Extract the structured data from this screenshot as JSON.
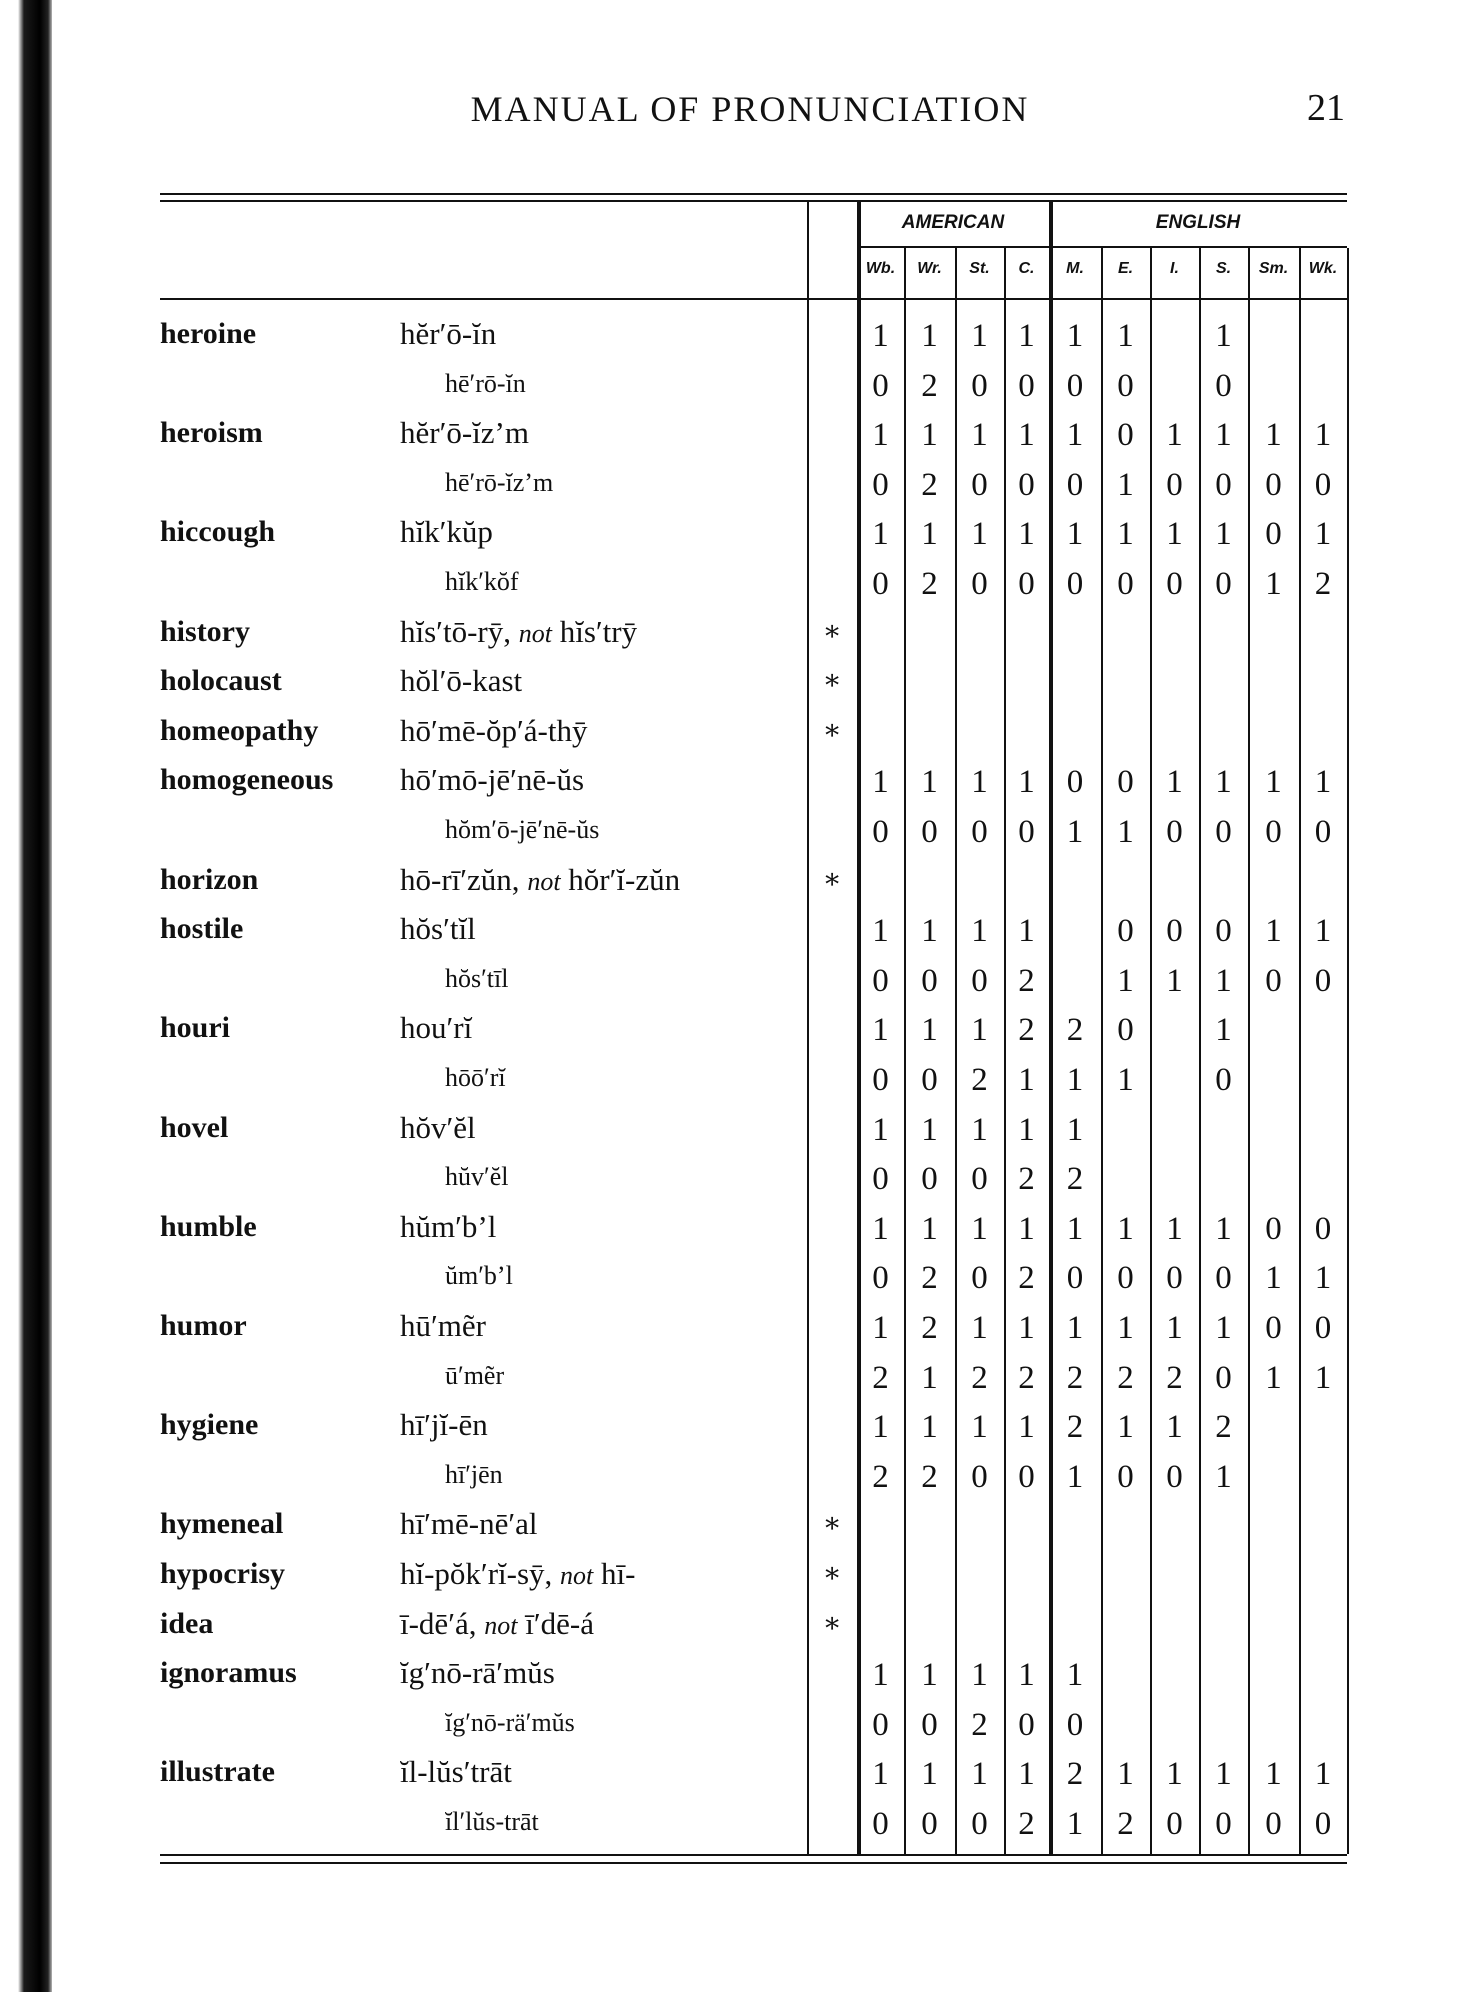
{
  "header": {
    "title": "MANUAL OF PRONUNCIATION",
    "page_number": "21"
  },
  "table": {
    "groups": [
      "AMERICAN",
      "ENGLISH"
    ],
    "columns": [
      "Wb.",
      "Wr.",
      "St.",
      "C.",
      "M.",
      "E.",
      "I.",
      "S.",
      "Sm.",
      "Wk."
    ],
    "star_symbol": "∗",
    "rows": [
      {
        "word": "heroine",
        "pron": "hĕr′ō-ĭn",
        "values": [
          "1",
          "1",
          "1",
          "1",
          "1",
          "1",
          "",
          "1",
          "",
          ""
        ]
      },
      {
        "word": "",
        "pron": "hē′rō-ĭn",
        "values": [
          "0",
          "2",
          "0",
          "0",
          "0",
          "0",
          "",
          "0",
          "",
          ""
        ]
      },
      {
        "word": "heroism",
        "pron": "hĕr′ō-ĭz’m",
        "values": [
          "1",
          "1",
          "1",
          "1",
          "1",
          "0",
          "1",
          "1",
          "1",
          "1"
        ]
      },
      {
        "word": "",
        "pron": "hē′rō-ĭz’m",
        "values": [
          "0",
          "2",
          "0",
          "0",
          "0",
          "1",
          "0",
          "0",
          "0",
          "0"
        ]
      },
      {
        "word": "hiccough",
        "pron": "hĭk′kŭp",
        "values": [
          "1",
          "1",
          "1",
          "1",
          "1",
          "1",
          "1",
          "1",
          "0",
          "1"
        ]
      },
      {
        "word": "",
        "pron": "hĭk′kŏf",
        "values": [
          "0",
          "2",
          "0",
          "0",
          "0",
          "0",
          "0",
          "0",
          "1",
          "2"
        ]
      },
      {
        "word": "history",
        "pron": "hĭs′tō-rȳ,",
        "not": "not",
        "alt": "hĭs′trȳ",
        "star": true,
        "values": []
      },
      {
        "word": "holocaust",
        "pron": "hŏl′ō-kast",
        "star": true,
        "values": []
      },
      {
        "word": "homeopathy",
        "pron": "hō′mē-ŏp′á-thȳ",
        "star": true,
        "values": []
      },
      {
        "word": "homogeneous",
        "pron": "hō′mō-jē′nē-ŭs",
        "values": [
          "1",
          "1",
          "1",
          "1",
          "0",
          "0",
          "1",
          "1",
          "1",
          "1"
        ]
      },
      {
        "word": "",
        "pron": "hŏm′ō-jē′nē-ŭs",
        "values": [
          "0",
          "0",
          "0",
          "0",
          "1",
          "1",
          "0",
          "0",
          "0",
          "0"
        ]
      },
      {
        "word": "horizon",
        "pron": "hō-rī′zŭn,",
        "not": "not",
        "alt": "hŏr′ĭ-zŭn",
        "star": true,
        "values": []
      },
      {
        "word": "hostile",
        "pron": "hŏs′tĭl",
        "values": [
          "1",
          "1",
          "1",
          "1",
          "",
          "0",
          "0",
          "0",
          "1",
          "1"
        ]
      },
      {
        "word": "",
        "pron": "hŏs′tīl",
        "values": [
          "0",
          "0",
          "0",
          "2",
          "",
          "1",
          "1",
          "1",
          "0",
          "0"
        ]
      },
      {
        "word": "houri",
        "pron": "hou′rĭ",
        "values": [
          "1",
          "1",
          "1",
          "2",
          "2",
          "0",
          "",
          "1",
          "",
          ""
        ]
      },
      {
        "word": "",
        "pron": "hōō′rĭ",
        "values": [
          "0",
          "0",
          "2",
          "1",
          "1",
          "1",
          "",
          "0",
          "",
          ""
        ]
      },
      {
        "word": "hovel",
        "pron": "hŏv′ĕl",
        "values": [
          "1",
          "1",
          "1",
          "1",
          "1",
          "",
          "",
          "",
          "",
          ""
        ]
      },
      {
        "word": "",
        "pron": "hŭv′ĕl",
        "values": [
          "0",
          "0",
          "0",
          "2",
          "2",
          "",
          "",
          "",
          "",
          ""
        ]
      },
      {
        "word": "humble",
        "pron": "hŭm′b’l",
        "values": [
          "1",
          "1",
          "1",
          "1",
          "1",
          "1",
          "1",
          "1",
          "0",
          "0"
        ]
      },
      {
        "word": "",
        "pron": "ŭm′b’l",
        "values": [
          "0",
          "2",
          "0",
          "2",
          "0",
          "0",
          "0",
          "0",
          "1",
          "1"
        ]
      },
      {
        "word": "humor",
        "pron": "hū′mẽr",
        "values": [
          "1",
          "2",
          "1",
          "1",
          "1",
          "1",
          "1",
          "1",
          "0",
          "0"
        ]
      },
      {
        "word": "",
        "pron": "ū′mẽr",
        "values": [
          "2",
          "1",
          "2",
          "2",
          "2",
          "2",
          "2",
          "0",
          "1",
          "1"
        ]
      },
      {
        "word": "hygiene",
        "pron": "hī′jĭ-ēn",
        "values": [
          "1",
          "1",
          "1",
          "1",
          "2",
          "1",
          "1",
          "2",
          "",
          ""
        ]
      },
      {
        "word": "",
        "pron": "hī′jēn",
        "values": [
          "2",
          "2",
          "0",
          "0",
          "1",
          "0",
          "0",
          "1",
          "",
          ""
        ]
      },
      {
        "word": "hymeneal",
        "pron": "hī′mē-nē′al",
        "star": true,
        "values": []
      },
      {
        "word": "hypocrisy",
        "pron": "hĭ-pŏk′rĭ-sȳ,",
        "not": "not",
        "alt": "hī-",
        "star": true,
        "values": []
      },
      {
        "word": "idea",
        "pron": "ī-dē′á,",
        "not": "not",
        "alt": "ī′dē-á",
        "star": true,
        "values": []
      },
      {
        "word": "ignoramus",
        "pron": "ĭg′nō-rā′mŭs",
        "values": [
          "1",
          "1",
          "1",
          "1",
          "1",
          "",
          "",
          "",
          "",
          ""
        ]
      },
      {
        "word": "",
        "pron": "ĭg′nō-rä′mŭs",
        "values": [
          "0",
          "0",
          "2",
          "0",
          "0",
          "",
          "",
          "",
          "",
          ""
        ]
      },
      {
        "word": "illustrate",
        "pron": "ĭl-lŭs′trāt",
        "values": [
          "1",
          "1",
          "1",
          "1",
          "2",
          "1",
          "1",
          "1",
          "1",
          "1"
        ]
      },
      {
        "word": "",
        "pron": "ĭl′lŭs-trāt",
        "values": [
          "0",
          "0",
          "0",
          "2",
          "1",
          "2",
          "0",
          "0",
          "0",
          "0"
        ]
      }
    ]
  }
}
